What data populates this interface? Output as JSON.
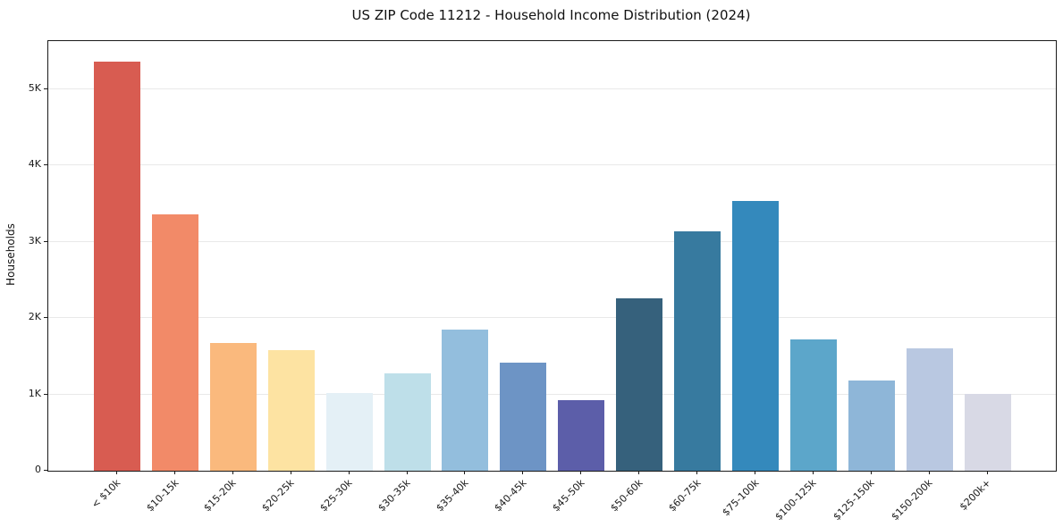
{
  "chart_data": {
    "type": "bar",
    "title": "US ZIP Code 11212 - Household Income Distribution (2024)",
    "xlabel": "",
    "ylabel": "Households",
    "categories": [
      "< $10k",
      "$10-15k",
      "$15-20k",
      "$20-25k",
      "$25-30k",
      "$30-35k",
      "$35-40k",
      "$40-45k",
      "$45-50k",
      "$50-60k",
      "$60-75k",
      "$75-100k",
      "$100-125k",
      "$125-150k",
      "$150-200k",
      "$200k+"
    ],
    "values": [
      5360,
      3360,
      1670,
      1580,
      1020,
      1280,
      1850,
      1420,
      930,
      2260,
      3140,
      3540,
      1720,
      1180,
      1600,
      1010
    ],
    "bar_colors": [
      "#d85c51",
      "#f28a68",
      "#fab97d",
      "#fde3a2",
      "#e4f0f6",
      "#bedfe9",
      "#93bedd",
      "#6d94c5",
      "#5c5ea9",
      "#36617c",
      "#377a9f",
      "#3489bc",
      "#5ca6ca",
      "#8eb6d8",
      "#b9c8e1",
      "#d8d9e5"
    ],
    "yticks": {
      "values": [
        0,
        1000,
        2000,
        3000,
        4000,
        5000
      ],
      "labels": [
        "0",
        "1K",
        "2K",
        "3K",
        "4K",
        "5K"
      ]
    },
    "ylim": [
      0,
      5630
    ],
    "grid": "horizontal",
    "legend": "none",
    "colors": {
      "background": "#ffffff",
      "grid": "#e9e9e9",
      "spine": "#1a1a1a",
      "text": "#1a1a1a"
    }
  }
}
